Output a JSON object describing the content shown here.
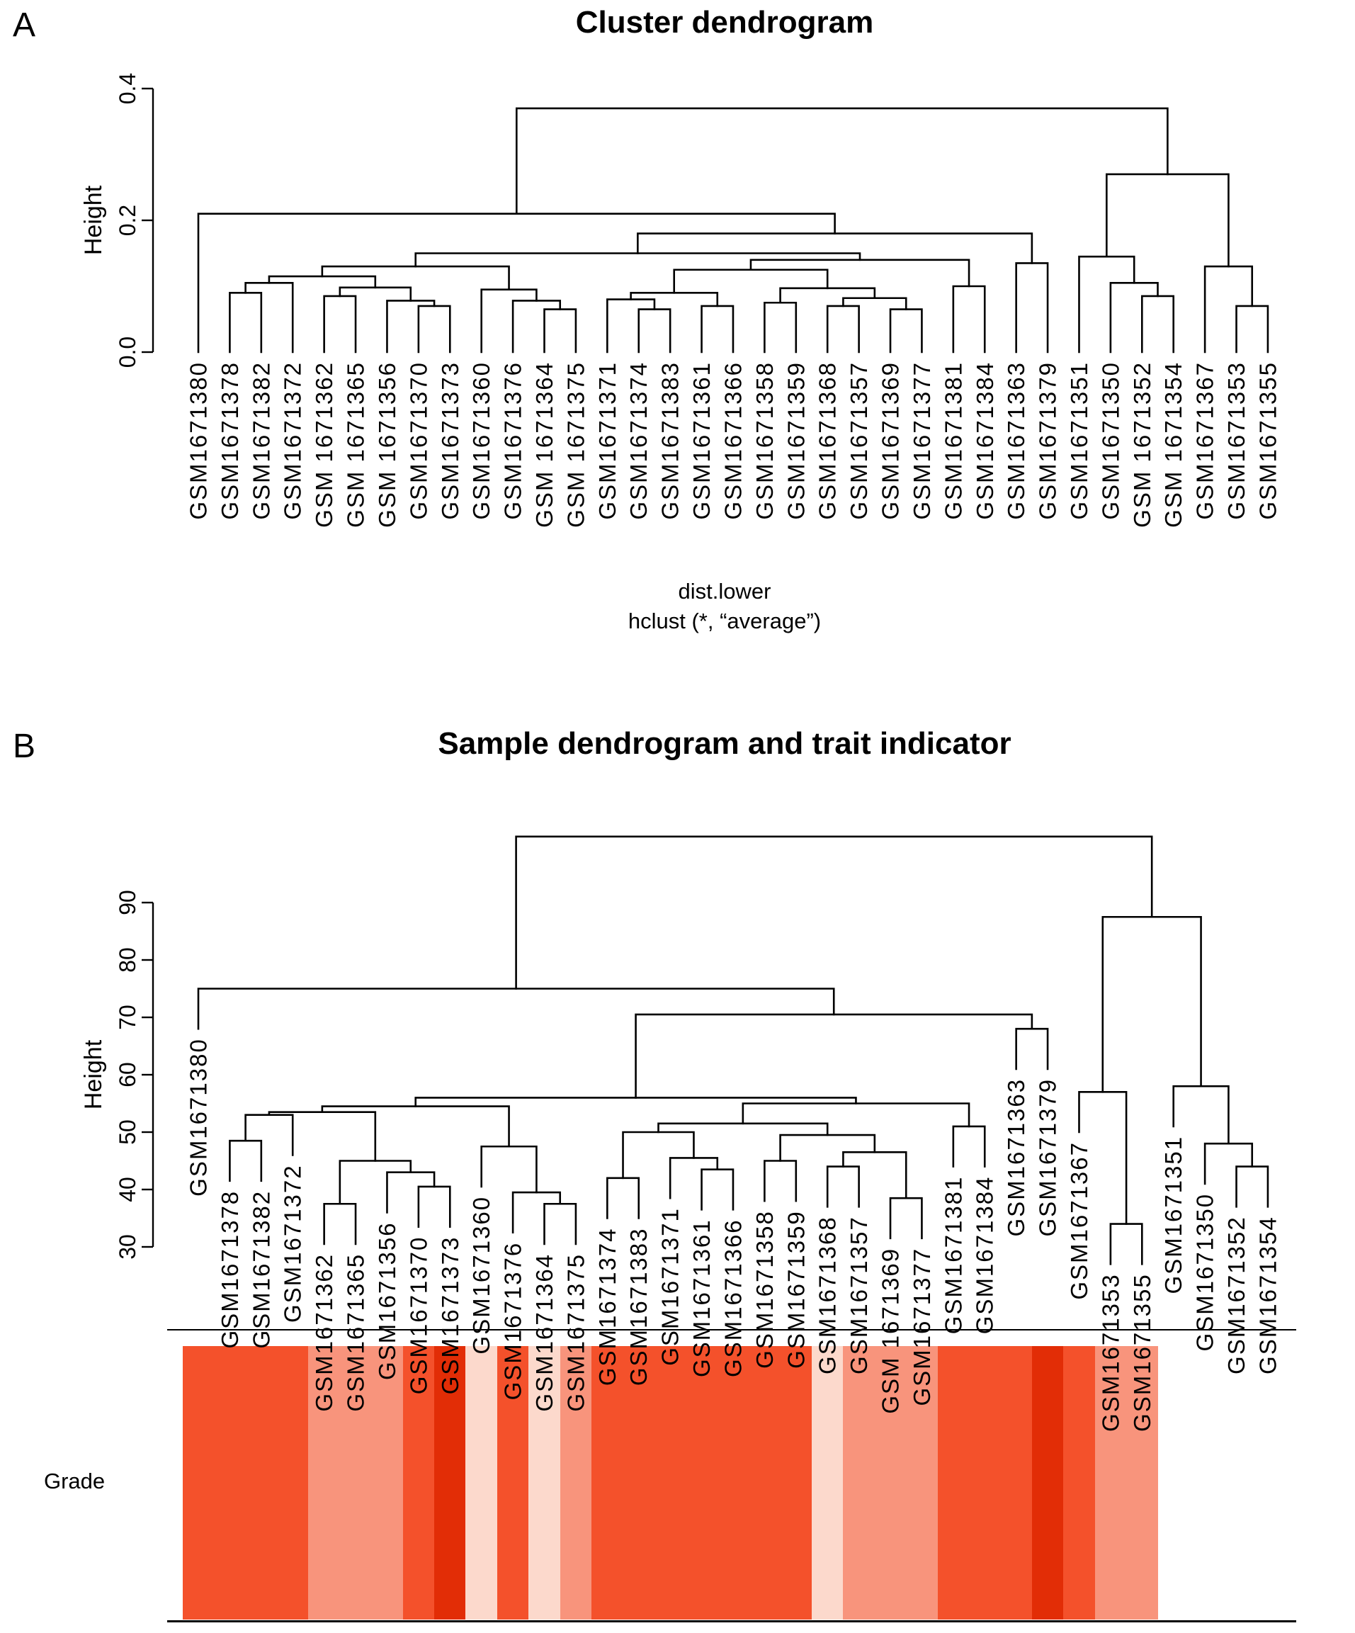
{
  "page": {
    "background": "#ffffff"
  },
  "panels": [
    {
      "letter": "A"
    },
    {
      "letter": "B"
    }
  ],
  "chart_data": [
    {
      "type": "dendrogram",
      "title": "Cluster dendrogram",
      "ylabel": "Height",
      "ytick_labels": [
        "0.0",
        "0.2",
        "0.4"
      ],
      "ytick_values": [
        0,
        0.2,
        0.4
      ],
      "ylim": [
        0,
        0.41
      ],
      "footer_lines": [
        "dist.lower",
        "hclust (*, “average”)"
      ],
      "leaves": [
        "GSM1671380",
        "GSM1671378",
        "GSM1671382",
        "GSM1671372",
        "GSM 1671362",
        "GSM 1671365",
        "GSM 1671356",
        "GSM1671370",
        "GSM1671373",
        "GSM1671360",
        "GSM1671376",
        "GSM 1671364",
        "GSM 1671375",
        "GSM1671371",
        "GSM1671374",
        "GSM1671383",
        "GSM1671361",
        "GSM1671366",
        "GSM1671358",
        "GSM1671359",
        "GSM1671368",
        "GSM1671357",
        "GSM1671369",
        "GSM1671377",
        "GSM1671381",
        "GSM1671384",
        "GSM1671363",
        "GSM1671379",
        "GSM1671351",
        "GSM1671350",
        "GSM 1671352",
        "GSM 1671354",
        "GSM1671367",
        "GSM1671353",
        "GSM1671355"
      ],
      "tree": {
        "h": 0.37,
        "c": [
          {
            "h": 0.21,
            "c": [
              0,
              {
                "h": 0.18,
                "c": [
                  {
                    "h": 0.15,
                    "c": [
                      {
                        "h": 0.13,
                        "c": [
                          {
                            "h": 0.115,
                            "c": [
                              {
                                "h": 0.105,
                                "c": [
                                  {
                                    "h": 0.09,
                                    "c": [
                                      1,
                                      2
                                    ]
                                  },
                                  3
                                ]
                              },
                              {
                                "h": 0.098,
                                "c": [
                                  {
                                    "h": 0.085,
                                    "c": [
                                      4,
                                      5
                                    ]
                                  },
                                  {
                                    "h": 0.078,
                                    "c": [
                                      6,
                                      {
                                        "h": 0.07,
                                        "c": [
                                          7,
                                          8
                                        ]
                                      }
                                    ]
                                  }
                                ]
                              }
                            ]
                          },
                          {
                            "h": 0.095,
                            "c": [
                              9,
                              {
                                "h": 0.078,
                                "c": [
                                  10,
                                  {
                                    "h": 0.065,
                                    "c": [
                                      11,
                                      12
                                    ]
                                  }
                                ]
                              }
                            ]
                          }
                        ]
                      },
                      {
                        "h": 0.14,
                        "c": [
                          {
                            "h": 0.125,
                            "c": [
                              {
                                "h": 0.09,
                                "c": [
                                  {
                                    "h": 0.08,
                                    "c": [
                                      13,
                                      {
                                        "h": 0.065,
                                        "c": [
                                          14,
                                          15
                                        ]
                                      }
                                    ]
                                  },
                                  {
                                    "h": 0.07,
                                    "c": [
                                      16,
                                      17
                                    ]
                                  }
                                ]
                              },
                              {
                                "h": 0.097,
                                "c": [
                                  {
                                    "h": 0.075,
                                    "c": [
                                      18,
                                      19
                                    ]
                                  },
                                  {
                                    "h": 0.082,
                                    "c": [
                                      {
                                        "h": 0.07,
                                        "c": [
                                          20,
                                          21
                                        ]
                                      },
                                      {
                                        "h": 0.065,
                                        "c": [
                                          22,
                                          23
                                        ]
                                      }
                                    ]
                                  }
                                ]
                              }
                            ]
                          },
                          {
                            "h": 0.1,
                            "c": [
                              24,
                              25
                            ]
                          }
                        ]
                      }
                    ]
                  },
                  {
                    "h": 0.135,
                    "c": [
                      26,
                      27
                    ]
                  }
                ]
              }
            ]
          },
          {
            "h": 0.27,
            "c": [
              {
                "h": 0.145,
                "c": [
                  28,
                  {
                    "h": 0.105,
                    "c": [
                      29,
                      {
                        "h": 0.085,
                        "c": [
                          30,
                          31
                        ]
                      }
                    ]
                  }
                ]
              },
              {
                "h": 0.13,
                "c": [
                  32,
                  {
                    "h": 0.07,
                    "c": [
                      33,
                      34
                    ]
                  }
                ]
              }
            ]
          }
        ]
      }
    },
    {
      "type": "dendrogram",
      "title": "Sample dendrogram and trait indicator",
      "ylabel": "Height",
      "ytick_labels": [
        "30",
        "40",
        "50",
        "60",
        "70",
        "80",
        "90"
      ],
      "ytick_values": [
        30,
        40,
        50,
        60,
        70,
        80,
        90
      ],
      "ylim": [
        27,
        103
      ],
      "leaf_hang": 7,
      "leaves": [
        "GSM1671380",
        "GSM1671378",
        "GSM1671382",
        "GSM1671372",
        "GSM1671362",
        "GSM1671365",
        "GSM1671356",
        "GSM1671370",
        "GSM1671373",
        "GSM1671360",
        "GSM1671376",
        "GSM1671364",
        "GSM1671375",
        "GSM1671374",
        "GSM1671383",
        "GSM1671371",
        "GSM1671361",
        "GSM1671366",
        "GSM1671358",
        "GSM1671359",
        "GSM1671368",
        "GSM1671357",
        "GSM 1671369",
        "GSM1671377",
        "GSM1671381",
        "GSM1671384",
        "GSM1671363",
        "GSM1671379",
        "GSM1671367",
        "GSM1671353",
        "GSM1671355",
        "GSM1671351",
        "GSM1671350",
        "GSM1671352",
        "GSM1671354"
      ],
      "tree": {
        "h": 101.5,
        "c": [
          {
            "h": 75,
            "c": [
              0,
              {
                "h": 70.5,
                "c": [
                  {
                    "h": 56,
                    "c": [
                      {
                        "h": 54.5,
                        "c": [
                          {
                            "h": 53.5,
                            "c": [
                              {
                                "h": 53,
                                "c": [
                                  {
                                    "h": 48.5,
                                    "c": [
                                      1,
                                      2
                                    ]
                                  },
                                  3
                                ]
                              },
                              {
                                "h": 45,
                                "c": [
                                  {
                                    "h": 37.5,
                                    "c": [
                                      4,
                                      5
                                    ]
                                  },
                                  {
                                    "h": 43,
                                    "c": [
                                      6,
                                      {
                                        "h": 40.5,
                                        "c": [
                                          7,
                                          8
                                        ]
                                      }
                                    ]
                                  }
                                ]
                              }
                            ]
                          },
                          {
                            "h": 47.5,
                            "c": [
                              9,
                              {
                                "h": 39.5,
                                "c": [
                                  10,
                                  {
                                    "h": 37.5,
                                    "c": [
                                      11,
                                      12
                                    ]
                                  }
                                ]
                              }
                            ]
                          }
                        ]
                      },
                      {
                        "h": 55,
                        "c": [
                          {
                            "h": 51.5,
                            "c": [
                              {
                                "h": 50,
                                "c": [
                                  {
                                    "h": 42,
                                    "c": [
                                      13,
                                      14
                                    ]
                                  },
                                  {
                                    "h": 45.5,
                                    "c": [
                                      15,
                                      {
                                        "h": 43.5,
                                        "c": [
                                          16,
                                          17
                                        ]
                                      }
                                    ]
                                  }
                                ]
                              },
                              {
                                "h": 49.5,
                                "c": [
                                  {
                                    "h": 45,
                                    "c": [
                                      18,
                                      19
                                    ]
                                  },
                                  {
                                    "h": 46.5,
                                    "c": [
                                      {
                                        "h": 44,
                                        "c": [
                                          20,
                                          21
                                        ]
                                      },
                                      {
                                        "h": 38.5,
                                        "c": [
                                          22,
                                          23
                                        ]
                                      }
                                    ]
                                  }
                                ]
                              }
                            ]
                          },
                          {
                            "h": 51,
                            "c": [
                              24,
                              25
                            ]
                          }
                        ]
                      }
                    ]
                  },
                  {
                    "h": 68,
                    "c": [
                      26,
                      27
                    ]
                  }
                ]
              }
            ]
          },
          {
            "h": 87.5,
            "c": [
              {
                "h": 57,
                "c": [
                  28,
                  {
                    "h": 34,
                    "c": [
                      29,
                      30
                    ]
                  }
                ]
              },
              {
                "h": 58,
                "c": [
                  31,
                  {
                    "h": 48,
                    "c": [
                      32,
                      {
                        "h": 44,
                        "c": [
                          33,
                          34
                        ]
                      }
                    ]
                  }
                ]
              }
            ]
          }
        ]
      },
      "trait": {
        "label": "Grade",
        "values": [
          3,
          3,
          3,
          3,
          2,
          2,
          2,
          3,
          4,
          1,
          3,
          1,
          2,
          3,
          3,
          3,
          3,
          3,
          3,
          3,
          1,
          2,
          2,
          2,
          3,
          3,
          3,
          4,
          3,
          2,
          2,
          null,
          null,
          null,
          null
        ],
        "palette": {
          "1": "#fcd9cc",
          "2": "#f8947c",
          "3": "#f4512b",
          "4": "#e22d06",
          "na": "#ffffff"
        }
      }
    }
  ]
}
